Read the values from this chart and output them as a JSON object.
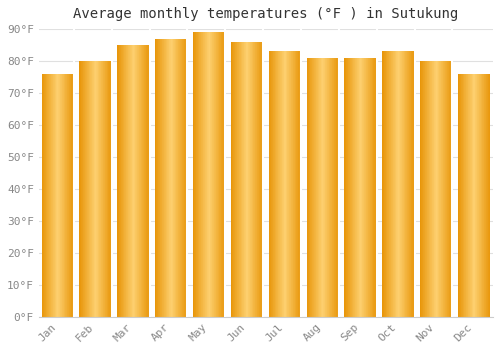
{
  "title": "Average monthly temperatures (°F ) in Sutukung",
  "months": [
    "Jan",
    "Feb",
    "Mar",
    "Apr",
    "May",
    "Jun",
    "Jul",
    "Aug",
    "Sep",
    "Oct",
    "Nov",
    "Dec"
  ],
  "values": [
    76,
    80,
    85,
    87,
    89,
    86,
    83,
    81,
    81,
    83,
    80,
    76
  ],
  "bar_color_main": "#FDB92E",
  "bar_color_light": "#FDD070",
  "bar_color_dark": "#E8960A",
  "background_color": "#FFFFFF",
  "grid_color": "#E0E0E0",
  "ylim": [
    0,
    90
  ],
  "yticks": [
    0,
    10,
    20,
    30,
    40,
    50,
    60,
    70,
    80,
    90
  ],
  "ytick_labels": [
    "0°F",
    "10°F",
    "20°F",
    "30°F",
    "40°F",
    "50°F",
    "60°F",
    "70°F",
    "80°F",
    "90°F"
  ],
  "title_fontsize": 10,
  "tick_fontsize": 8,
  "font_family": "monospace"
}
